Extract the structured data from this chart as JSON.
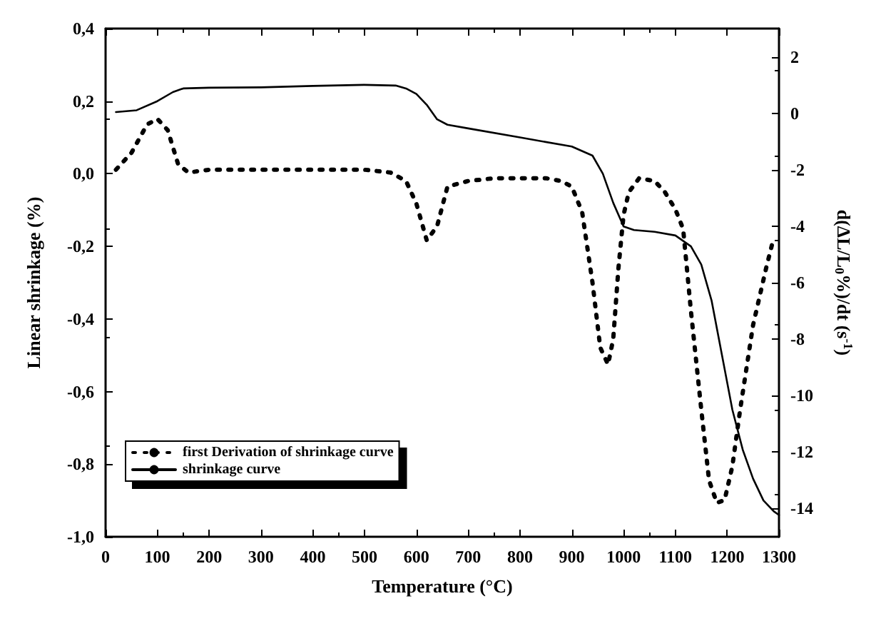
{
  "chart_data": {
    "type": "line",
    "xlabel": "Temperature (°C)",
    "ylabel": "Linear shrinkage (%)",
    "y2label": "d(ΔL/L$_{0}$%)/dt (s$^{-1}$)",
    "xlim": [
      0,
      1300
    ],
    "xticks": [
      0,
      100,
      200,
      300,
      400,
      500,
      600,
      700,
      800,
      900,
      1000,
      1100,
      1200,
      1300
    ],
    "ylim": [
      -1.0,
      0.4
    ],
    "yticks": [
      {
        "value": -1.0,
        "label": "-1,0"
      },
      {
        "value": -0.8,
        "label": "-0,8"
      },
      {
        "value": -0.6,
        "label": "-0,6"
      },
      {
        "value": -0.4,
        "label": "-0,4"
      },
      {
        "value": -0.2,
        "label": "-0,2"
      },
      {
        "value": 0,
        "label": "0,0"
      },
      {
        "value": 0.2,
        "label": "0,2"
      },
      {
        "value": 0.4,
        "label": "0,4"
      }
    ],
    "y2lim": [
      -15,
      3
    ],
    "y2ticks": [
      -14,
      -12,
      -10,
      -8,
      -6,
      -4,
      -2,
      0,
      2
    ],
    "legend": "bottom left",
    "grid": false,
    "marker": "none",
    "series": [
      {
        "name": "first Derivation of shrinkage curve",
        "color": "#000000",
        "axis": "y2",
        "line_style": "dotted",
        "x": [
          20,
          50,
          80,
          100,
          120,
          140,
          160,
          200,
          300,
          400,
          500,
          550,
          580,
          600,
          620,
          640,
          660,
          700,
          750,
          800,
          850,
          880,
          900,
          920,
          940,
          955,
          970,
          980,
          990,
          1000,
          1010,
          1030,
          1060,
          1080,
          1100,
          1115,
          1130,
          1150,
          1165,
          1180,
          1195,
          1210,
          1225,
          1250,
          1275,
          1290
        ],
        "values": [
          -2.0,
          -1.4,
          -0.4,
          -0.2,
          -0.6,
          -1.8,
          -2.1,
          -2.0,
          -2.0,
          -2.0,
          -2.0,
          -2.1,
          -2.4,
          -3.2,
          -4.5,
          -4.0,
          -2.6,
          -2.4,
          -2.3,
          -2.3,
          -2.3,
          -2.4,
          -2.6,
          -3.5,
          -6.0,
          -8.3,
          -8.9,
          -8.0,
          -5.5,
          -3.6,
          -2.8,
          -2.3,
          -2.4,
          -2.8,
          -3.4,
          -4.1,
          -7.0,
          -10.5,
          -13.0,
          -13.8,
          -13.7,
          -12.5,
          -10.5,
          -7.5,
          -5.5,
          -4.4
        ]
      },
      {
        "name": "shrinkage curve",
        "color": "#000000",
        "line_style": "solid",
        "x": [
          20,
          60,
          100,
          130,
          150,
          200,
          300,
          400,
          500,
          560,
          580,
          600,
          620,
          640,
          660,
          700,
          800,
          900,
          940,
          960,
          980,
          1000,
          1020,
          1060,
          1100,
          1130,
          1150,
          1170,
          1190,
          1210,
          1230,
          1250,
          1270,
          1290,
          1300
        ],
        "values": [
          0.17,
          0.175,
          0.2,
          0.225,
          0.235,
          0.237,
          0.238,
          0.242,
          0.245,
          0.243,
          0.235,
          0.22,
          0.19,
          0.15,
          0.135,
          0.125,
          0.1,
          0.075,
          0.05,
          0.0,
          -0.08,
          -0.145,
          -0.155,
          -0.16,
          -0.17,
          -0.2,
          -0.25,
          -0.35,
          -0.5,
          -0.65,
          -0.76,
          -0.84,
          -0.9,
          -0.93,
          -0.94
        ]
      }
    ]
  }
}
